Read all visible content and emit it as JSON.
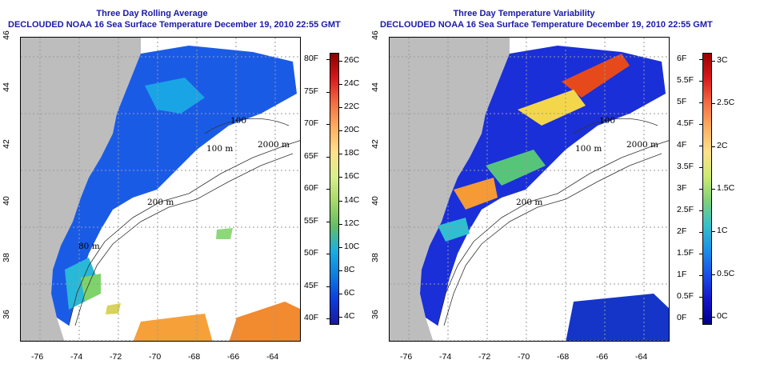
{
  "left_panel": {
    "title_line1": "Three Day Rolling Average",
    "title_line2": "DECLOUDED NOAA 16 Sea Surface Temperature December 19, 2010 22:55 GMT",
    "x_ticks": [
      "-76",
      "-74",
      "-72",
      "-70",
      "-68",
      "-66",
      "-64"
    ],
    "y_ticks": [
      "36",
      "38",
      "40",
      "42",
      "44",
      "46"
    ],
    "contour_labels": [
      "100",
      "100 m",
      "2000 m",
      "200 m",
      "80 m"
    ],
    "colorbar": {
      "fahrenheit": [
        "80F",
        "75F",
        "70F",
        "65F",
        "60F",
        "55F",
        "50F",
        "45F",
        "40F"
      ],
      "celsius": [
        "26C",
        "24C",
        "22C",
        "20C",
        "18C",
        "16C",
        "14C",
        "12C",
        "10C",
        "8C",
        "6C",
        "4C"
      ],
      "gradient": [
        "#8b0000",
        "#d7191c",
        "#f46d43",
        "#fdae61",
        "#fee08b",
        "#d9ef8b",
        "#a6d96a",
        "#66bd63",
        "#1ab0e0",
        "#0b7fe0",
        "#0a3ee0",
        "#1a1a9c"
      ]
    }
  },
  "right_panel": {
    "title_line1": "Three Day Temperature Variability",
    "title_line2": "DECLOUDED NOAA 16 Sea Surface Temperature December 19, 2010 22:55 GMT",
    "x_ticks": [
      "-76",
      "-74",
      "-72",
      "-70",
      "-68",
      "-66",
      "-64"
    ],
    "y_ticks": [
      "36",
      "38",
      "40",
      "42",
      "44",
      "46"
    ],
    "contour_labels": [
      "100",
      "100 m",
      "2000 m",
      "200 m"
    ],
    "colorbar": {
      "fahrenheit": [
        "6F",
        "5.5F",
        "5F",
        "4.5F",
        "4F",
        "3.5F",
        "3F",
        "2.5F",
        "2F",
        "1.5F",
        "1F",
        "0.5F",
        "0F"
      ],
      "celsius": [
        "3C",
        "2.5C",
        "2C",
        "1.5C",
        "1C",
        "0.5C",
        "0C"
      ],
      "gradient": [
        "#9b0000",
        "#d7191c",
        "#f46d43",
        "#fdae61",
        "#fee08b",
        "#ccea70",
        "#7fd07a",
        "#35c0c8",
        "#1a8fe8",
        "#1a4fe8",
        "#1515c8",
        "#00008b"
      ]
    }
  },
  "colors": {
    "land": "#bdbdbd",
    "title": "#1a1aa6",
    "grid": "#9a9a9a"
  }
}
